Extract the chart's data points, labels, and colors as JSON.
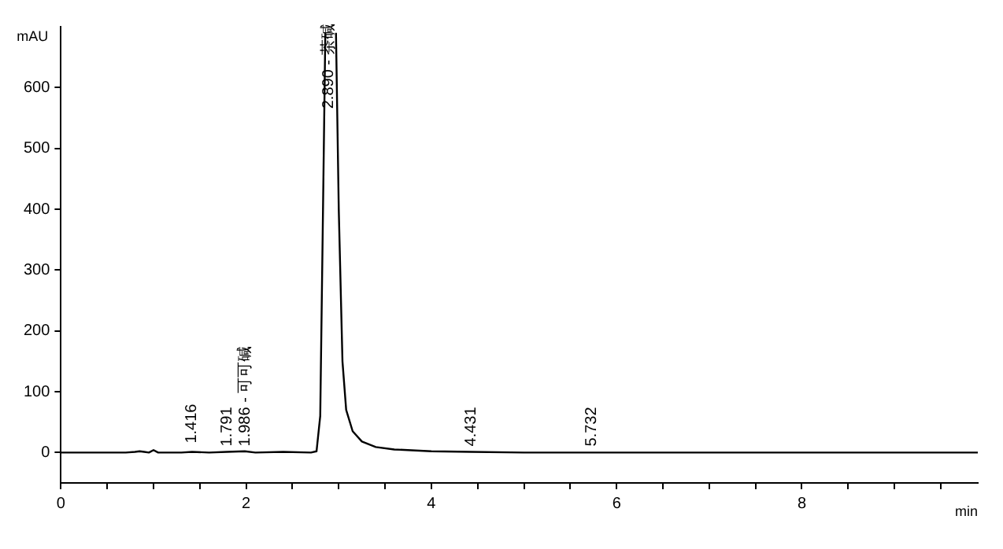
{
  "chart_data": {
    "type": "line",
    "xlabel": "min",
    "ylabel": "mAU",
    "x": [
      0,
      0.7,
      0.8,
      0.85,
      0.9,
      0.95,
      1.0,
      1.05,
      1.3,
      1.416,
      1.6,
      1.791,
      1.986,
      2.1,
      2.4,
      2.7,
      2.76,
      2.8,
      2.83,
      2.855,
      2.91,
      2.97,
      3.0,
      3.04,
      3.08,
      3.15,
      3.25,
      3.4,
      3.6,
      4.0,
      4.431,
      5.0,
      5.732,
      9.9
    ],
    "series": [
      {
        "color": "#000000",
        "values": [
          0,
          0,
          1,
          2,
          1,
          0,
          4,
          0,
          0,
          1,
          0,
          1,
          2,
          0,
          1,
          0,
          2,
          60,
          400,
          690,
          null,
          690,
          400,
          150,
          70,
          35,
          18,
          9,
          5,
          2,
          1,
          0,
          0,
          0
        ]
      }
    ],
    "xlim": [
      0,
      9.9
    ],
    "ylim": [
      -50,
      700
    ],
    "xticks": [
      0,
      {
        "value": 0.5,
        "label": null
      },
      {
        "value": 1,
        "label": null
      },
      {
        "value": 1.5,
        "label": null
      },
      2,
      {
        "value": 2.5,
        "label": null
      },
      {
        "value": 3,
        "label": null
      },
      {
        "value": 3.5,
        "label": null
      },
      4,
      {
        "value": 4.5,
        "label": null
      },
      {
        "value": 5,
        "label": null
      },
      {
        "value": 5.5,
        "label": null
      },
      6,
      {
        "value": 6.5,
        "label": null
      },
      {
        "value": 7,
        "label": null
      },
      {
        "value": 7.5,
        "label": null
      },
      8,
      {
        "value": 8.5,
        "label": null
      },
      {
        "value": 9,
        "label": null
      },
      {
        "value": 9.5,
        "label": null
      }
    ],
    "yticks": [
      0,
      100,
      200,
      300,
      400,
      500,
      600
    ],
    "annotations": [
      {
        "text": "1.416",
        "x": 1.416,
        "y": 10
      },
      {
        "text": "1.791",
        "x": 1.791,
        "y": 5
      },
      {
        "text": "1.986 - 可可碱",
        "x": 1.986,
        "y": 5
      },
      {
        "text": "2.890 - 茶碱",
        "x": 2.89,
        "y": 560
      },
      {
        "text": "4.431",
        "x": 4.431,
        "y": 5
      },
      {
        "text": "5.732",
        "x": 5.732,
        "y": 5
      }
    ],
    "grid": false,
    "legend": false,
    "marker": "none",
    "line_style": "solid"
  }
}
